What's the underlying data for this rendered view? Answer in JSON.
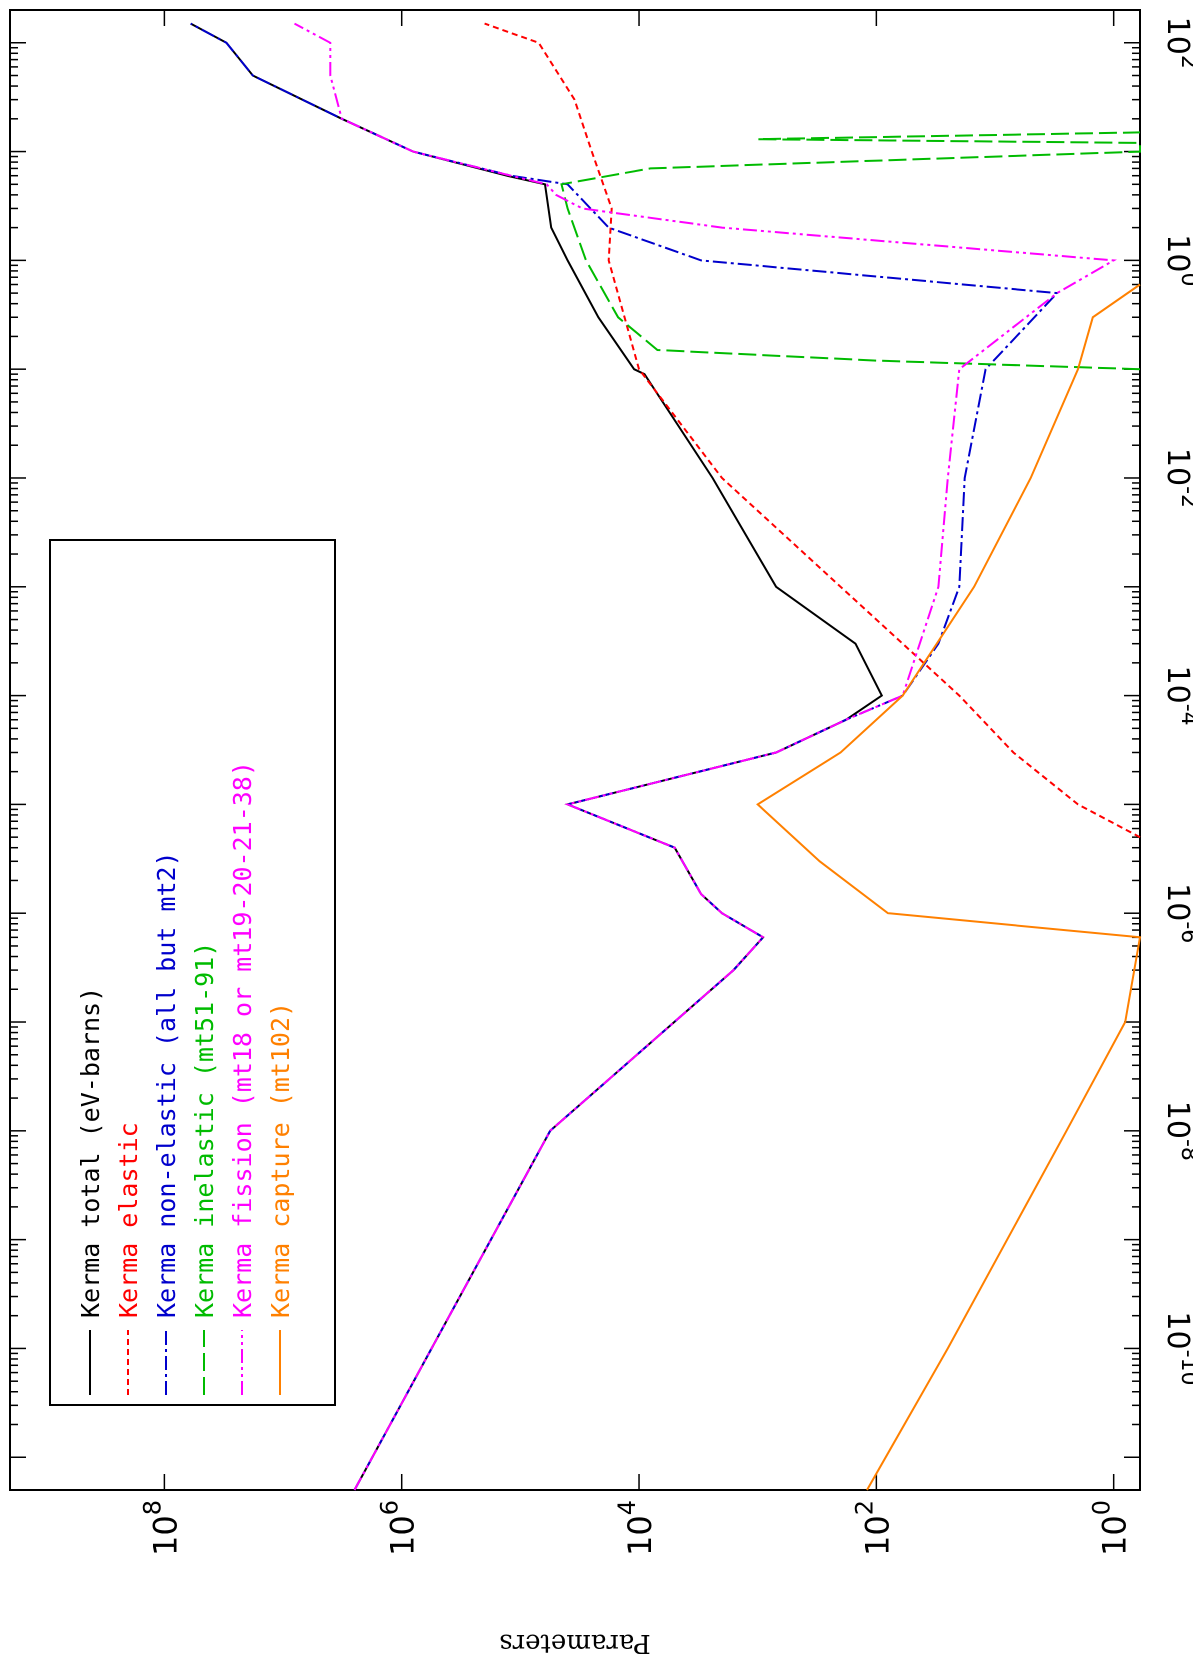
{
  "chart_data": {
    "type": "line",
    "orientation": "rotated-90-clockwise",
    "xscale": "log",
    "yscale": "log",
    "xlim": [
      5e-12,
      200
    ],
    "ylim": [
      0.6,
      2000000000.0
    ],
    "ylabel": "Parameters",
    "x_ticks": [
      {
        "mantissa": "10",
        "exp": "-10",
        "value": 1e-10
      },
      {
        "mantissa": "10",
        "exp": "-8",
        "value": 1e-08
      },
      {
        "mantissa": "10",
        "exp": "-6",
        "value": 1e-06
      },
      {
        "mantissa": "10",
        "exp": "-4",
        "value": 0.0001
      },
      {
        "mantissa": "10",
        "exp": "-2",
        "value": 0.01
      },
      {
        "mantissa": "10",
        "exp": "0",
        "value": 1
      },
      {
        "mantissa": "10",
        "exp": "2",
        "value": 100
      }
    ],
    "y_ticks": [
      {
        "mantissa": "10",
        "exp": "0",
        "value": 1
      },
      {
        "mantissa": "10",
        "exp": "2",
        "value": 100
      },
      {
        "mantissa": "10",
        "exp": "4",
        "value": 10000
      },
      {
        "mantissa": "10",
        "exp": "6",
        "value": 1000000
      },
      {
        "mantissa": "10",
        "exp": "8",
        "value": 100000000
      }
    ],
    "legend": {
      "placement": "top-left",
      "entries": [
        {
          "prefix": "Kerma",
          "label": "total  (eV-barns)",
          "prefix_color": "#000000",
          "color": "#000000",
          "dash": "none"
        },
        {
          "prefix": "Kerma",
          "label": "elastic",
          "prefix_color": "#ff0000",
          "color": "#ff0000",
          "dash": "6,4"
        },
        {
          "prefix": "Kerma",
          "label": "non-elastic (all but mt2)",
          "prefix_color": "#0000cc",
          "color": "#0000cc",
          "dash": "14,4,3,4"
        },
        {
          "prefix": "Kerma",
          "label": "inelastic (mt51-91)",
          "prefix_color": "#00bb00",
          "color": "#00bb00",
          "dash": "18,6"
        },
        {
          "prefix": "Kerma",
          "label": "fission (mt18 or mt19-20-21-38)",
          "prefix_color": "#ff00ff",
          "color": "#ff00ff",
          "dash": "14,4,3,4,3,4"
        },
        {
          "prefix": "Kerma",
          "label": "capture (mt102)",
          "prefix_color": "#ff8000",
          "color": "#ff8000",
          "dash": "none"
        }
      ]
    },
    "series": [
      {
        "name": "Kerma total",
        "color": "#000000",
        "dash": "none",
        "points": [
          [
            5e-12,
            2500000
          ],
          [
            1e-10,
            560000
          ],
          [
            1e-08,
            56000
          ],
          [
            3e-07,
            1600
          ],
          [
            6e-07,
            900
          ],
          [
            1e-06,
            2000
          ],
          [
            1.5e-06,
            3000
          ],
          [
            4e-06,
            5000
          ],
          [
            1e-05,
            40000
          ],
          [
            3e-05,
            700
          ],
          [
            6e-05,
            180
          ],
          [
            0.0001,
            90
          ],
          [
            0.0003,
            150
          ],
          [
            0.001,
            700
          ],
          [
            0.01,
            2400
          ],
          [
            0.09,
            9000
          ],
          [
            0.1,
            11000
          ],
          [
            0.3,
            22000
          ],
          [
            1,
            40000
          ],
          [
            2,
            55000
          ],
          [
            5,
            62000
          ],
          [
            6,
            130000
          ],
          [
            10,
            800000
          ],
          [
            20,
            3200000
          ],
          [
            50,
            18000000
          ],
          [
            100,
            30000000
          ],
          [
            150,
            60000000
          ]
        ]
      },
      {
        "name": "Kerma elastic",
        "color": "#ff0000",
        "dash": "6,4",
        "points": [
          [
            5e-06,
            0.6
          ],
          [
            1e-05,
            2
          ],
          [
            3e-05,
            7
          ],
          [
            0.0001,
            20
          ],
          [
            0.001,
            200
          ],
          [
            0.01,
            2000
          ],
          [
            0.1,
            10000
          ],
          [
            1,
            18000
          ],
          [
            3,
            17000
          ],
          [
            10,
            25000
          ],
          [
            30,
            35000
          ],
          [
            100,
            70000
          ],
          [
            150,
            200000
          ]
        ]
      },
      {
        "name": "Kerma non-elastic",
        "color": "#0000cc",
        "dash": "14,4,3,4",
        "points": [
          [
            5e-12,
            2500000
          ],
          [
            1e-10,
            560000
          ],
          [
            1e-08,
            56000
          ],
          [
            3e-07,
            1600
          ],
          [
            6e-07,
            900
          ],
          [
            1e-06,
            2000
          ],
          [
            1.5e-06,
            3000
          ],
          [
            4e-06,
            5000
          ],
          [
            1e-05,
            40000
          ],
          [
            3e-05,
            700
          ],
          [
            6e-05,
            180
          ],
          [
            0.0001,
            60
          ],
          [
            0.0003,
            30
          ],
          [
            0.001,
            20
          ],
          [
            0.01,
            18
          ],
          [
            0.1,
            12
          ],
          [
            0.5,
            3
          ],
          [
            1,
            3000
          ],
          [
            2,
            18000
          ],
          [
            5,
            40000
          ],
          [
            6,
            120000
          ],
          [
            10,
            800000
          ],
          [
            20,
            3200000
          ],
          [
            50,
            18000000
          ],
          [
            100,
            30000000
          ],
          [
            150,
            60000000
          ]
        ]
      },
      {
        "name": "Kerma inelastic",
        "color": "#00bb00",
        "dash": "18,6",
        "points": [
          [
            0.1,
            0.6
          ],
          [
            0.12,
            100
          ],
          [
            0.15,
            7000
          ],
          [
            0.3,
            15000
          ],
          [
            1,
            28000
          ],
          [
            3,
            40000
          ],
          [
            5,
            45000
          ],
          [
            7,
            8000
          ],
          [
            10,
            0.6
          ],
          [
            12,
            0.6
          ],
          [
            13,
            1000
          ],
          [
            15,
            0.6
          ]
        ]
      },
      {
        "name": "Kerma fission",
        "color": "#ff00ff",
        "dash": "14,4,3,4,3,4",
        "points": [
          [
            5e-12,
            2500000
          ],
          [
            1e-10,
            560000
          ],
          [
            1e-08,
            56000
          ],
          [
            3e-07,
            1600
          ],
          [
            6e-07,
            900
          ],
          [
            1e-06,
            2000
          ],
          [
            1.5e-06,
            3000
          ],
          [
            4e-06,
            5000
          ],
          [
            1e-05,
            40000
          ],
          [
            3e-05,
            700
          ],
          [
            6e-05,
            180
          ],
          [
            0.0001,
            60
          ],
          [
            0.001,
            30
          ],
          [
            0.01,
            25
          ],
          [
            0.1,
            20
          ],
          [
            0.5,
            3
          ],
          [
            1,
            1
          ],
          [
            2,
            2000
          ],
          [
            3,
            30000
          ],
          [
            4,
            50000
          ],
          [
            5,
            60000
          ],
          [
            6,
            120000
          ],
          [
            10,
            800000
          ],
          [
            20,
            3200000
          ],
          [
            50,
            4000000
          ],
          [
            100,
            4000000
          ],
          [
            150,
            8000000
          ]
        ]
      },
      {
        "name": "Kerma capture",
        "color": "#ff8000",
        "dash": "none",
        "points": [
          [
            5e-12,
            120
          ],
          [
            1e-10,
            25
          ],
          [
            1e-08,
            2.5
          ],
          [
            1e-07,
            0.8
          ],
          [
            6e-07,
            0.6
          ],
          [
            1e-06,
            80
          ],
          [
            3e-06,
            300
          ],
          [
            1e-05,
            1000
          ],
          [
            3e-05,
            200
          ],
          [
            0.0001,
            60
          ],
          [
            0.001,
            15
          ],
          [
            0.01,
            5
          ],
          [
            0.1,
            2
          ],
          [
            0.3,
            1.5
          ],
          [
            0.6,
            0.6
          ]
        ]
      }
    ]
  }
}
